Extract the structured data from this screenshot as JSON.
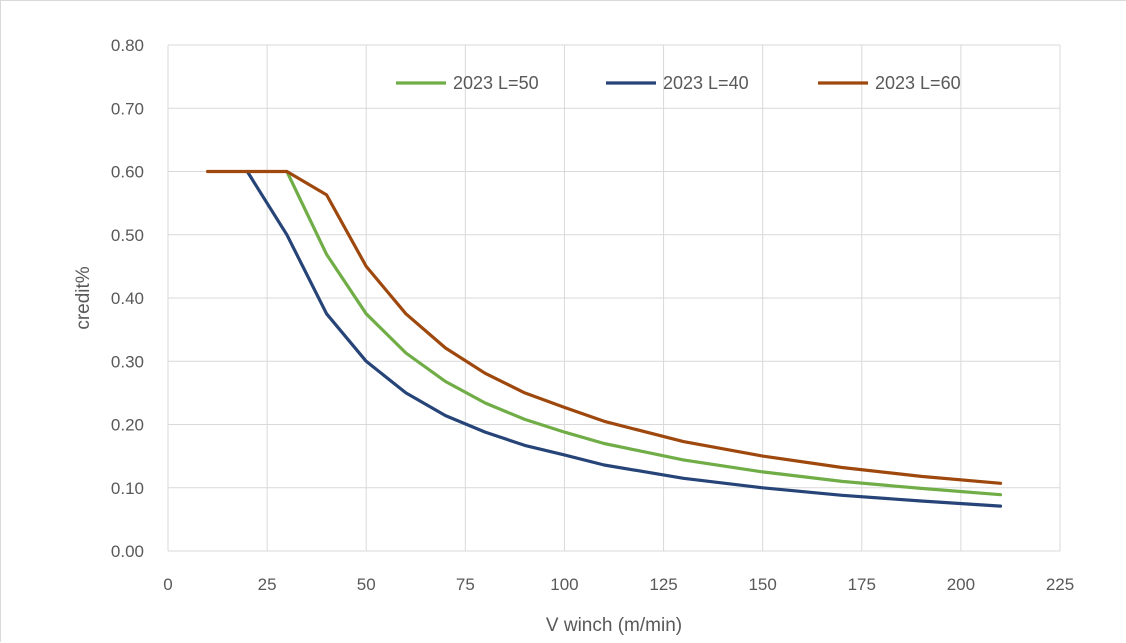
{
  "chart_data": {
    "type": "line",
    "xlabel": "V winch (m/min)",
    "ylabel": "credit%",
    "xlim": [
      0,
      225
    ],
    "ylim": [
      0,
      0.8
    ],
    "x_ticks": [
      "0",
      "25",
      "50",
      "75",
      "100",
      "125",
      "150",
      "175",
      "200",
      "225"
    ],
    "y_ticks": [
      "0.00",
      "0.10",
      "0.20",
      "0.30",
      "0.40",
      "0.50",
      "0.60",
      "0.70",
      "0.80"
    ],
    "grid": true,
    "legend_position": "top",
    "series": [
      {
        "name": "2023 L=50",
        "color": "#70ad47",
        "points": [
          [
            30,
            0.6
          ],
          [
            40,
            0.469
          ],
          [
            50,
            0.375
          ],
          [
            60,
            0.313
          ],
          [
            70,
            0.268
          ],
          [
            80,
            0.234
          ],
          [
            90,
            0.208
          ],
          [
            100,
            0.188
          ],
          [
            110,
            0.17
          ],
          [
            130,
            0.144
          ],
          [
            150,
            0.125
          ],
          [
            170,
            0.11
          ],
          [
            190,
            0.099
          ],
          [
            210,
            0.089
          ]
        ]
      },
      {
        "name": "2023 L=40",
        "color": "#264478",
        "points": [
          [
            20,
            0.6
          ],
          [
            30,
            0.5
          ],
          [
            40,
            0.375
          ],
          [
            50,
            0.3
          ],
          [
            60,
            0.25
          ],
          [
            70,
            0.214
          ],
          [
            80,
            0.188
          ],
          [
            90,
            0.167
          ],
          [
            100,
            0.152
          ],
          [
            110,
            0.136
          ],
          [
            130,
            0.115
          ],
          [
            150,
            0.1
          ],
          [
            170,
            0.088
          ],
          [
            190,
            0.079
          ],
          [
            210,
            0.071
          ]
        ]
      },
      {
        "name": "2023 L=60",
        "color": "#9e480e",
        "points": [
          [
            10,
            0.6
          ],
          [
            20,
            0.6
          ],
          [
            30,
            0.6
          ],
          [
            40,
            0.563
          ],
          [
            50,
            0.45
          ],
          [
            60,
            0.375
          ],
          [
            70,
            0.321
          ],
          [
            80,
            0.281
          ],
          [
            90,
            0.25
          ],
          [
            100,
            0.227
          ],
          [
            110,
            0.205
          ],
          [
            130,
            0.173
          ],
          [
            150,
            0.15
          ],
          [
            170,
            0.132
          ],
          [
            190,
            0.118
          ],
          [
            210,
            0.107
          ]
        ]
      }
    ]
  }
}
